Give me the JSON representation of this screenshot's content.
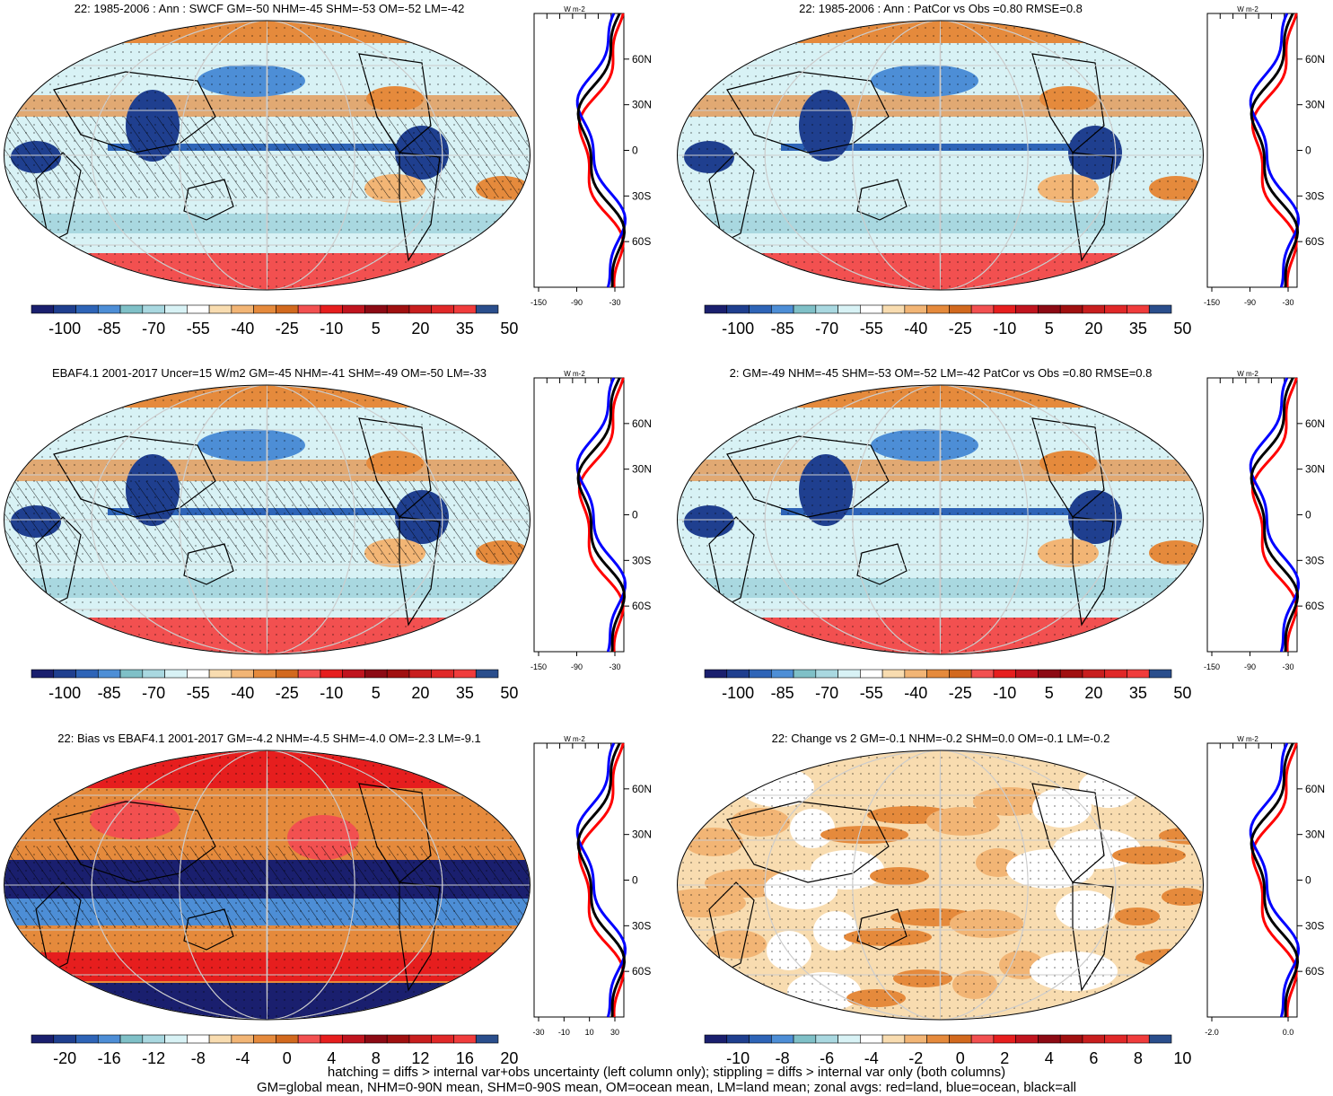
{
  "panels": [
    {
      "title": "22: 1985-2006 : Ann : SWCF GM=-50 NHM=-45 SHM=-53 OM=-52 LM=-42",
      "colorbar_labels": [
        "-100",
        "-85",
        "-70",
        "-55",
        "-40",
        "-25",
        "-10",
        "5",
        "20",
        "35",
        "50"
      ],
      "zonal_xticks": [
        "-150",
        "-90",
        "-30"
      ],
      "zonal_lat_labels": [
        "60N",
        "30N",
        "0",
        "30S",
        "60S"
      ],
      "zonal_units": "W m-2",
      "hatching": true,
      "kind": "mean"
    },
    {
      "title": "22: 1985-2006 : Ann : PatCor vs Obs =0.80 RMSE=0.8",
      "colorbar_labels": [
        "-100",
        "-85",
        "-70",
        "-55",
        "-40",
        "-25",
        "-10",
        "5",
        "20",
        "35",
        "50"
      ],
      "zonal_xticks": [
        "-150",
        "-90",
        "-30"
      ],
      "zonal_lat_labels": [
        "60N",
        "30N",
        "0",
        "30S",
        "60S"
      ],
      "zonal_units": "W m-2",
      "hatching": false,
      "kind": "mean"
    },
    {
      "title": "EBAF4.1 2001-2017 Uncer=15 W/m2 GM=-45 NHM=-41 SHM=-49 OM=-50 LM=-33",
      "colorbar_labels": [
        "-100",
        "-85",
        "-70",
        "-55",
        "-40",
        "-25",
        "-10",
        "5",
        "20",
        "35",
        "50"
      ],
      "zonal_xticks": [
        "-150",
        "-90",
        "-30"
      ],
      "zonal_lat_labels": [
        "60N",
        "30N",
        "0",
        "30S",
        "60S"
      ],
      "zonal_units": "W m-2",
      "hatching": true,
      "kind": "obs"
    },
    {
      "title": "2: GM=-49 NHM=-45 SHM=-53 OM=-52 LM=-42 PatCor vs Obs =0.80 RMSE=0.8",
      "colorbar_labels": [
        "-100",
        "-85",
        "-70",
        "-55",
        "-40",
        "-25",
        "-10",
        "5",
        "20",
        "35",
        "50"
      ],
      "zonal_xticks": [
        "-150",
        "-90",
        "-30"
      ],
      "zonal_lat_labels": [
        "60N",
        "30N",
        "0",
        "30S",
        "60S"
      ],
      "zonal_units": "W m-2",
      "hatching": false,
      "kind": "mean"
    },
    {
      "title": "22: Bias vs EBAF4.1 2001-2017 GM=-4.2 NHM=-4.5 SHM=-4.0 OM=-2.3 LM=-9.1",
      "colorbar_labels": [
        "-20",
        "-16",
        "-12",
        "-8",
        "-4",
        "0",
        "4",
        "8",
        "12",
        "16",
        "20"
      ],
      "zonal_xticks": [
        "-30",
        "-10",
        "10",
        "30"
      ],
      "zonal_lat_labels": [
        "60N",
        "30N",
        "0",
        "30S",
        "60S"
      ],
      "zonal_units": "W m-2",
      "hatching": true,
      "kind": "bias"
    },
    {
      "title": "22: Change vs 2 GM=-0.1 NHM=-0.2 SHM=0.0 OM=-0.1 LM=-0.2",
      "colorbar_labels": [
        "-10",
        "-8",
        "-6",
        "-4",
        "-2",
        "0",
        "2",
        "4",
        "6",
        "8",
        "10"
      ],
      "zonal_xticks": [
        "-2.0",
        "0.0"
      ],
      "zonal_lat_labels": [
        "60N",
        "30N",
        "0",
        "30S",
        "60S"
      ],
      "zonal_units": "W m-2",
      "hatching": false,
      "kind": "change"
    }
  ],
  "colors": {
    "scale": [
      "#1a1f6e",
      "#1f3f8f",
      "#2e64b7",
      "#4d8ed6",
      "#7fc0c7",
      "#a9d8e0",
      "#d8f2f5",
      "#ffffff",
      "#f8dcb0",
      "#f2b575",
      "#e58a3c",
      "#d2691e",
      "#f25050",
      "#e61e1e",
      "#c0141e",
      "#8c0a14",
      "#a01010",
      "#c81e1e",
      "#e02828",
      "#f03c3c",
      "#2a4e8c"
    ],
    "land_zonal": "#ff0000",
    "ocean_zonal": "#0000ff",
    "all_zonal": "#000000"
  },
  "footer": {
    "line1": "hatching = diffs > internal var+obs uncertainty (left column only); stippling = diffs > internal var only (both columns)",
    "line2": "GM=global mean, NHM=0-90N mean, SHM=0-90S mean, OM=ocean mean, LM=land mean; zonal avgs: red=land, blue=ocean, black=all"
  }
}
